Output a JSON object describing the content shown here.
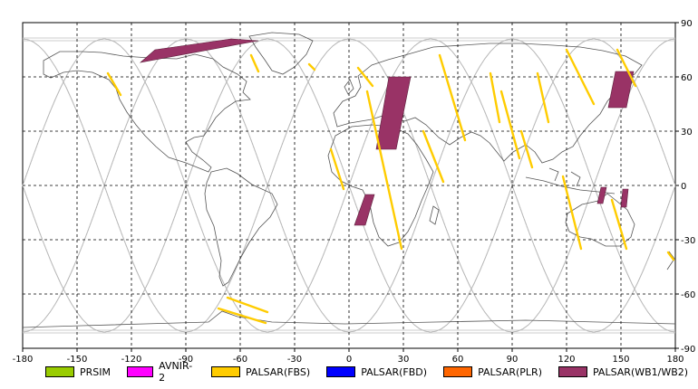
{
  "chart_data": {
    "type": "map",
    "projection": "equirectangular",
    "xlim": [
      -180,
      180
    ],
    "ylim": [
      -90,
      90
    ],
    "x_ticks": [
      -180,
      -150,
      -120,
      -90,
      -60,
      -30,
      0,
      30,
      60,
      90,
      120,
      150,
      180
    ],
    "y_ticks_right": [
      90,
      60,
      30,
      0,
      -30,
      -60,
      -90
    ],
    "grid": "dashed every 30 degrees",
    "legend": [
      {
        "label": "PRSIM",
        "color": "#99cc00"
      },
      {
        "label": "AVNIR-2",
        "color": "#ff00ff"
      },
      {
        "label": "PALSAR(FBS)",
        "color": "#ffcc00"
      },
      {
        "label": "PALSAR(FBD)",
        "color": "#0000ff"
      },
      {
        "label": "PALSAR(PLR)",
        "color": "#ff6600"
      },
      {
        "label": "PALSAR(WB1/WB2)",
        "color": "#993366"
      }
    ],
    "orbit_color": "#bbbbbb",
    "coast_color": "#555555",
    "wb_swaths": [
      {
        "lon": [
          -107,
          -65,
          -50,
          -115
        ],
        "lat": [
          75,
          81,
          80,
          68
        ]
      },
      {
        "lon": [
          22,
          34,
          26,
          15
        ],
        "lat": [
          60,
          60,
          20,
          20
        ]
      },
      {
        "lon": [
          9,
          14,
          9,
          3
        ],
        "lat": [
          -5,
          -5,
          -22,
          -22
        ]
      },
      {
        "lon": [
          147,
          157,
          153,
          143
        ],
        "lat": [
          63,
          63,
          43,
          43
        ]
      },
      {
        "lon": [
          139,
          142,
          140,
          137
        ],
        "lat": [
          -1,
          -1,
          -10,
          -10
        ]
      },
      {
        "lon": [
          151,
          154,
          153,
          150
        ],
        "lat": [
          -2,
          -2,
          -12,
          -12
        ]
      }
    ],
    "fbs_tracks": [
      {
        "lon": [
          -133,
          -126
        ],
        "lat": [
          62,
          50
        ]
      },
      {
        "lon": [
          -54,
          -50
        ],
        "lat": [
          72,
          63
        ]
      },
      {
        "lon": [
          -22,
          -19
        ],
        "lat": [
          67,
          64
        ]
      },
      {
        "lon": [
          -10,
          -3
        ],
        "lat": [
          20,
          -2
        ]
      },
      {
        "lon": [
          5,
          13
        ],
        "lat": [
          65,
          55
        ]
      },
      {
        "lon": [
          10,
          29
        ],
        "lat": [
          52,
          -35
        ]
      },
      {
        "lon": [
          41,
          52
        ],
        "lat": [
          30,
          2
        ]
      },
      {
        "lon": [
          50,
          64
        ],
        "lat": [
          72,
          25
        ]
      },
      {
        "lon": [
          78,
          83
        ],
        "lat": [
          62,
          35
        ]
      },
      {
        "lon": [
          84,
          94
        ],
        "lat": [
          52,
          15
        ]
      },
      {
        "lon": [
          95,
          101
        ],
        "lat": [
          30,
          10
        ]
      },
      {
        "lon": [
          104,
          110
        ],
        "lat": [
          62,
          35
        ]
      },
      {
        "lon": [
          120,
          135
        ],
        "lat": [
          75,
          45
        ]
      },
      {
        "lon": [
          118,
          128
        ],
        "lat": [
          5,
          -35
        ]
      },
      {
        "lon": [
          148,
          158
        ],
        "lat": [
          75,
          55
        ]
      },
      {
        "lon": [
          145,
          153
        ],
        "lat": [
          -8,
          -35
        ]
      },
      {
        "lon": [
          176,
          179
        ],
        "lat": [
          -37,
          -41
        ]
      },
      {
        "lon": [
          -67,
          -45
        ],
        "lat": [
          -62,
          -70
        ]
      },
      {
        "lon": [
          -72,
          -46
        ],
        "lat": [
          -68,
          -76
        ]
      }
    ]
  }
}
